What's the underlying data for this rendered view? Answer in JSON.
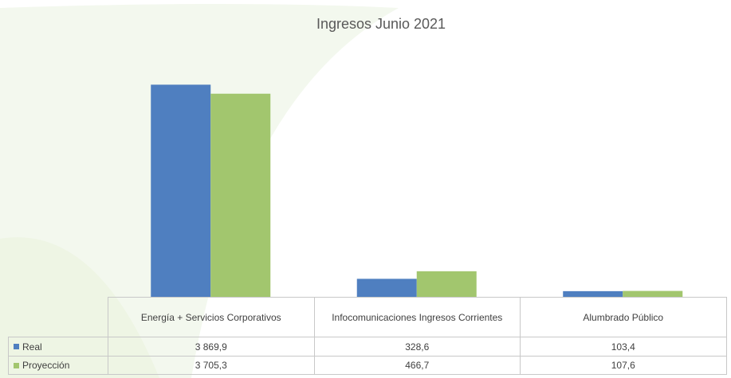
{
  "chart_data": {
    "type": "bar",
    "title": "Ingresos Junio 2021",
    "categories": [
      "Energía + Servicios Corporativos",
      "Infocomunicaciones Ingresos Corrientes",
      "Alumbrado Público"
    ],
    "series": [
      {
        "name": "Real",
        "color": "#4f7fc0",
        "values": [
          3869.9,
          328.6,
          103.4
        ],
        "value_labels": [
          "3 869,9",
          "328,6",
          "103,4"
        ]
      },
      {
        "name": "Proyección",
        "color": "#a2c66e",
        "values": [
          3705.3,
          466.7,
          107.6
        ],
        "value_labels": [
          "3 705,3",
          "466,7",
          "107,6"
        ]
      }
    ],
    "ylim": [
      0,
      4500
    ]
  }
}
